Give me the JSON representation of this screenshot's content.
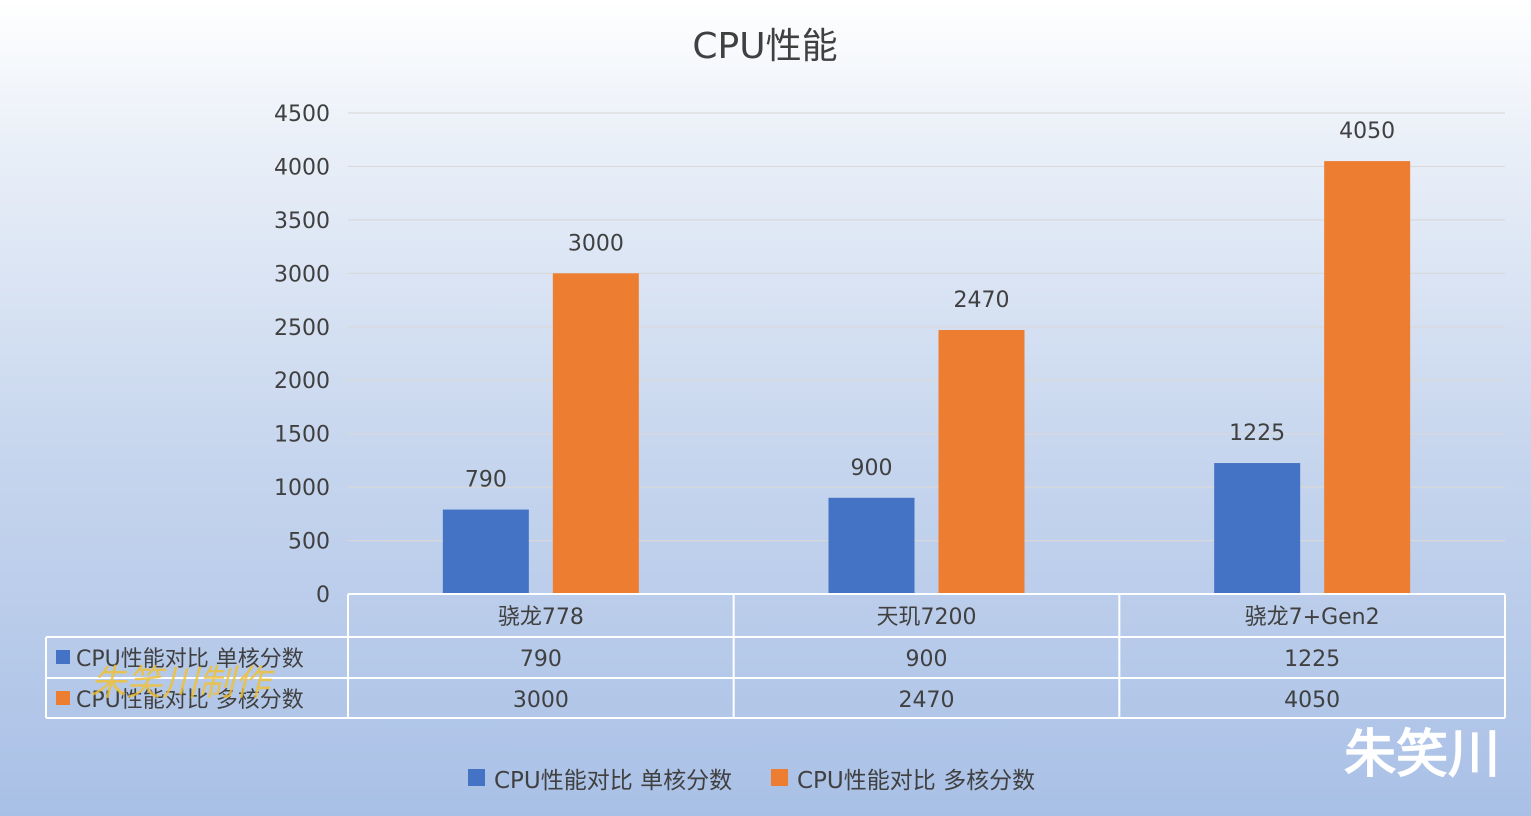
{
  "chart_data": {
    "type": "bar",
    "title": "CPU性能",
    "categories": [
      "骁龙778",
      "天玑7200",
      "骁龙7+Gen2"
    ],
    "series": [
      {
        "name": "CPU性能对比 单核分数",
        "values": [
          790,
          900,
          1225
        ],
        "color": "#4472C4"
      },
      {
        "name": "CPU性能对比 多核分数",
        "values": [
          3000,
          2470,
          4050
        ],
        "color": "#ED7D31"
      }
    ],
    "ylim": [
      0,
      4500
    ],
    "ystep": 500,
    "yticks": [
      "0",
      "500",
      "1000",
      "1500",
      "2000",
      "2500",
      "3000",
      "3500",
      "4000",
      "4500"
    ],
    "grid": true,
    "data_table": true,
    "legend_position": "bottom"
  },
  "watermarks": {
    "corner": "朱笑川",
    "overlay": "朱笑川制作"
  }
}
